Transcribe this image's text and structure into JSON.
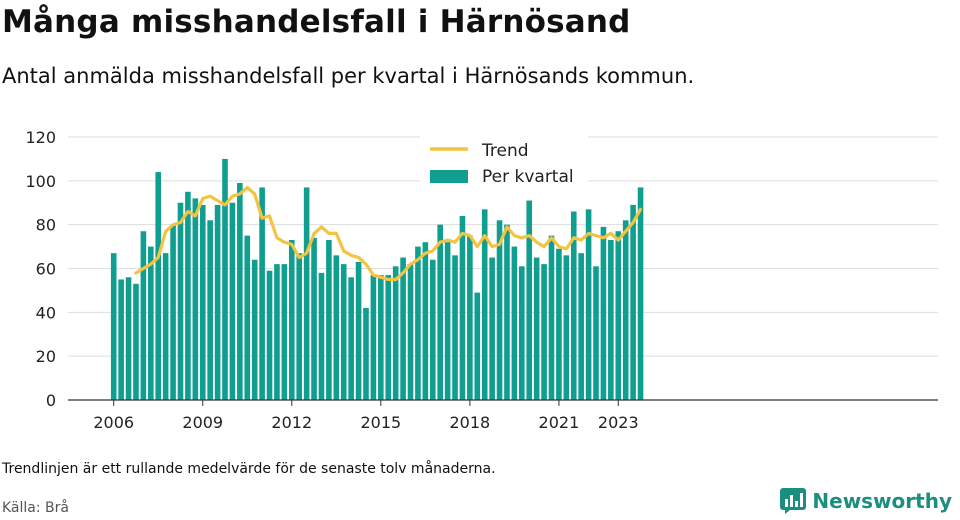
{
  "title": "Många misshandelsfall i Härnösand",
  "subtitle": "Antal anmälda misshandelsfall per kvartal i Härnösands kommun.",
  "footnote": "Trendlinjen är ett rullande medelvärde för de senaste tolv månaderna.",
  "source": "Källa: Brå",
  "brand": "Newsworthy",
  "colors": {
    "bars": "#0f9e8f",
    "trend": "#f5c342",
    "grid": "#dddddd",
    "axis": "#333333",
    "brand": "#1b8e80"
  },
  "chart_data": {
    "type": "bar",
    "ylim": [
      0,
      120
    ],
    "yticks": [
      0,
      20,
      40,
      60,
      80,
      100,
      120
    ],
    "xticks": [
      "2006",
      "2009",
      "2012",
      "2015",
      "2018",
      "2021",
      "2023"
    ],
    "legend": {
      "position": "top-center",
      "entries": [
        "Trend",
        "Per kvartal"
      ]
    },
    "grid": true,
    "categories": [
      "2006 Q1",
      "2006 Q2",
      "2006 Q3",
      "2006 Q4",
      "2007 Q1",
      "2007 Q2",
      "2007 Q3",
      "2007 Q4",
      "2008 Q1",
      "2008 Q2",
      "2008 Q3",
      "2008 Q4",
      "2009 Q1",
      "2009 Q2",
      "2009 Q3",
      "2009 Q4",
      "2010 Q1",
      "2010 Q2",
      "2010 Q3",
      "2010 Q4",
      "2011 Q1",
      "2011 Q2",
      "2011 Q3",
      "2011 Q4",
      "2012 Q1",
      "2012 Q2",
      "2012 Q3",
      "2012 Q4",
      "2013 Q1",
      "2013 Q2",
      "2013 Q3",
      "2013 Q4",
      "2014 Q1",
      "2014 Q2",
      "2014 Q3",
      "2014 Q4",
      "2015 Q1",
      "2015 Q2",
      "2015 Q3",
      "2015 Q4",
      "2016 Q1",
      "2016 Q2",
      "2016 Q3",
      "2016 Q4",
      "2017 Q1",
      "2017 Q2",
      "2017 Q3",
      "2017 Q4",
      "2018 Q1",
      "2018 Q2",
      "2018 Q3",
      "2018 Q4",
      "2019 Q1",
      "2019 Q2",
      "2019 Q3",
      "2019 Q4",
      "2020 Q1",
      "2020 Q2",
      "2020 Q3",
      "2020 Q4",
      "2021 Q1",
      "2021 Q2",
      "2021 Q3",
      "2021 Q4",
      "2022 Q1",
      "2022 Q2",
      "2022 Q3",
      "2022 Q4",
      "2023 Q1",
      "2023 Q2",
      "2023 Q3",
      "2023 Q4"
    ],
    "series": [
      {
        "name": "Per kvartal",
        "type": "bar",
        "values": [
          67,
          55,
          56,
          53,
          77,
          70,
          104,
          67,
          80,
          90,
          95,
          92,
          89,
          82,
          89,
          110,
          90,
          99,
          75,
          64,
          97,
          59,
          62,
          62,
          73,
          67,
          97,
          74,
          58,
          73,
          66,
          62,
          56,
          63,
          42,
          57,
          57,
          57,
          61,
          65,
          62,
          70,
          72,
          64,
          80,
          72,
          66,
          84,
          75,
          49,
          87,
          65,
          82,
          80,
          70,
          61,
          91,
          65,
          62,
          75,
          69,
          66,
          86,
          67,
          87,
          61,
          79,
          73,
          77,
          82,
          89,
          97
        ]
      },
      {
        "name": "Trend",
        "type": "line",
        "values": [
          null,
          null,
          null,
          58,
          60,
          62,
          65,
          77,
          80,
          81,
          86,
          84,
          92,
          93,
          91,
          89,
          93,
          94,
          97,
          94,
          83,
          84,
          74,
          72,
          71,
          65,
          67,
          76,
          79,
          76,
          76,
          68,
          66,
          65,
          62,
          57,
          56,
          55,
          55,
          58,
          62,
          64,
          67,
          68,
          72,
          73,
          72,
          76,
          75,
          70,
          75,
          70,
          71,
          79,
          75,
          74,
          75,
          72,
          70,
          74,
          70,
          69,
          74,
          73,
          76,
          75,
          74,
          76,
          73,
          77,
          81,
          87
        ]
      }
    ]
  }
}
